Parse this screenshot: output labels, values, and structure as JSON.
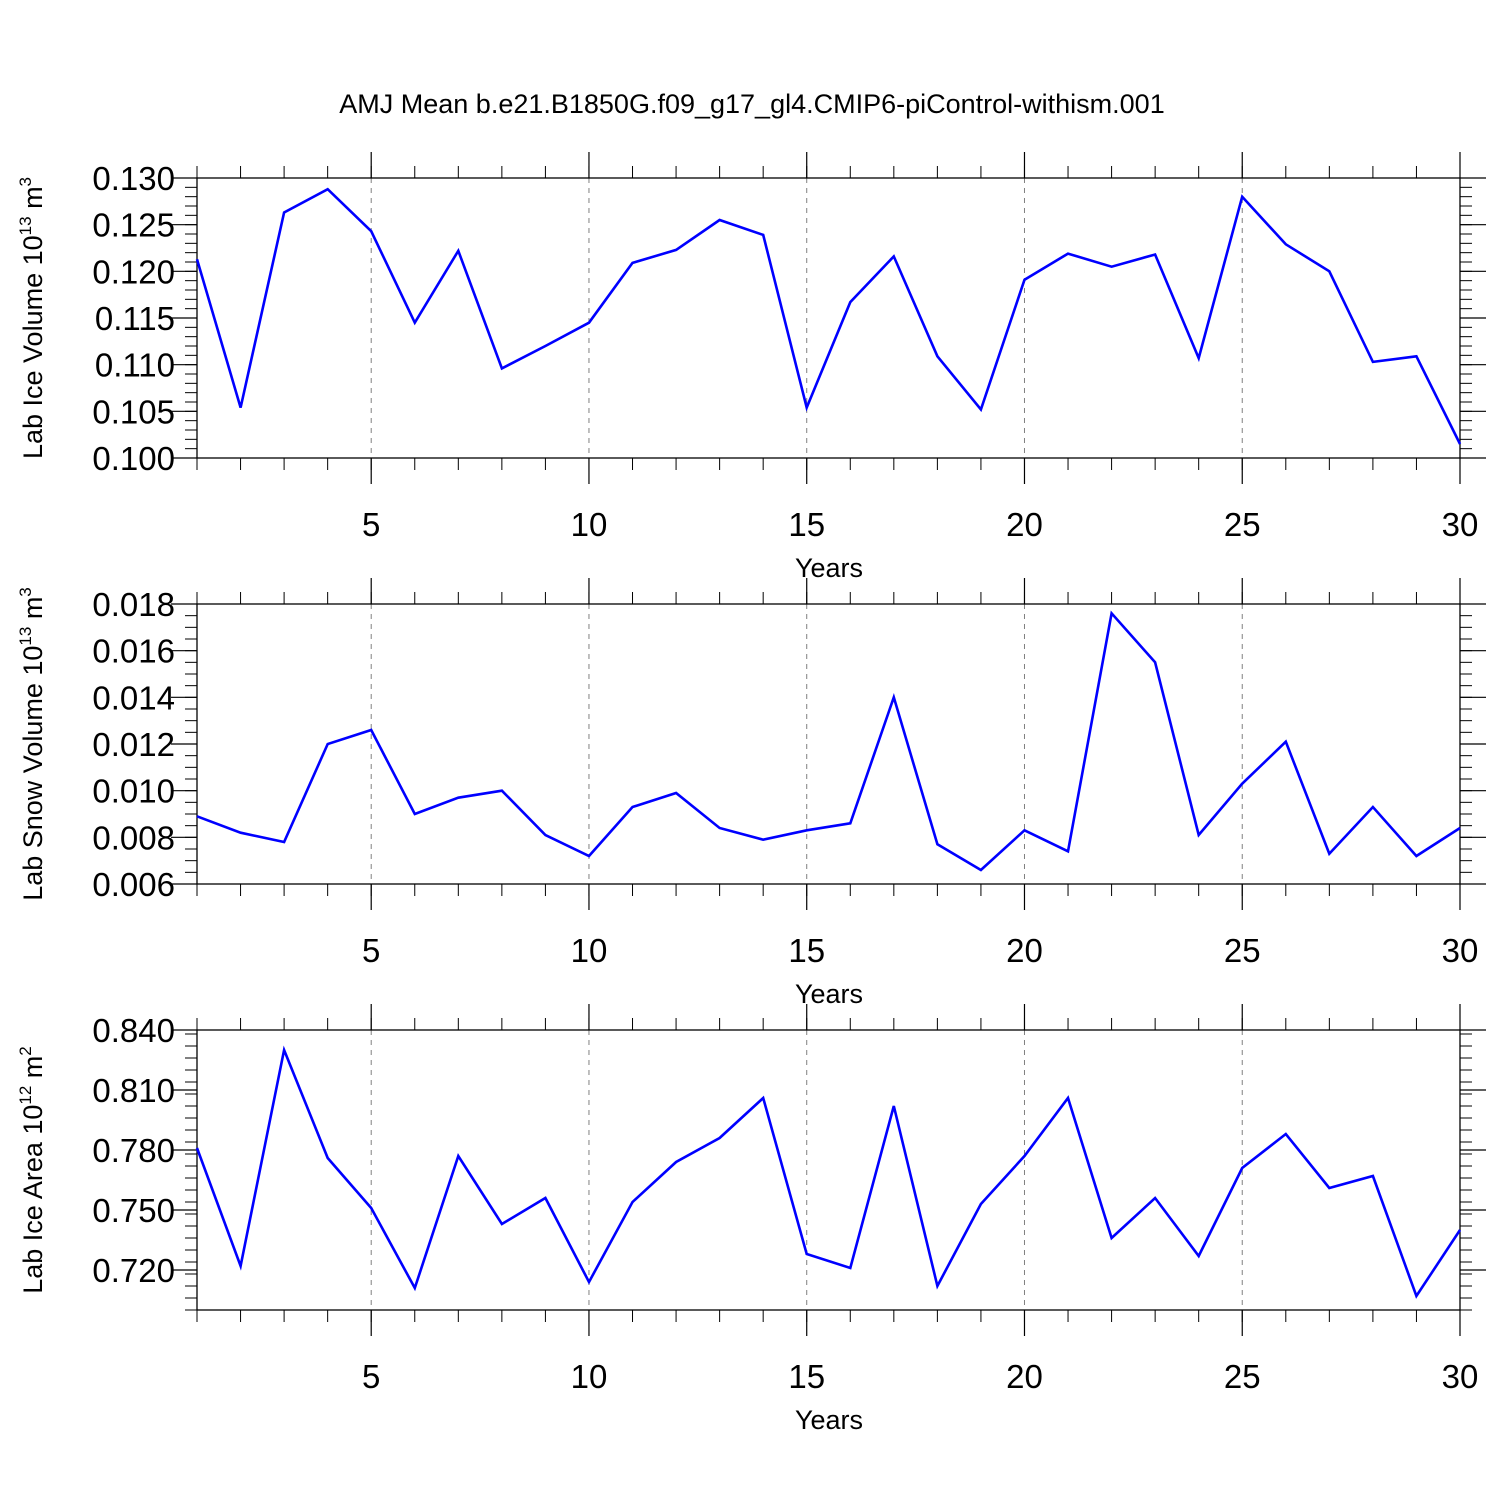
{
  "title": "AMJ Mean b.e21.B1850G.f09_g17_gl4.CMIP6-piControl-withism.001",
  "line_color": "#0000ff",
  "grid_color": "#808080",
  "chart_data": [
    {
      "type": "line",
      "ylabel": {
        "base": "Lab Ice Volume 10",
        "exp": "13",
        "unit": " m",
        "unit_exp": "3"
      },
      "xlabel": "Years",
      "x": [
        1,
        2,
        3,
        4,
        5,
        6,
        7,
        8,
        9,
        10,
        11,
        12,
        13,
        14,
        15,
        16,
        17,
        18,
        19,
        20,
        21,
        22,
        23,
        24,
        25,
        26,
        27,
        28,
        29,
        30
      ],
      "values": [
        0.1213,
        0.1054,
        0.1263,
        0.1288,
        0.1243,
        0.1145,
        0.1222,
        0.1096,
        0.112,
        0.1145,
        0.1209,
        0.1223,
        0.1255,
        0.1239,
        0.1054,
        0.1167,
        0.1216,
        0.1109,
        0.1052,
        0.1191,
        0.1219,
        0.1205,
        0.1218,
        0.1107,
        0.128,
        0.1229,
        0.12,
        0.1103,
        0.1109,
        0.1015
      ],
      "xlim": [
        1,
        30
      ],
      "ylim": [
        0.1,
        0.13
      ],
      "yticks": [
        0.1,
        0.105,
        0.11,
        0.115,
        0.12,
        0.125,
        0.13
      ],
      "ytick_labels": [
        "0.100",
        "0.105",
        "0.110",
        "0.115",
        "0.120",
        "0.125",
        "0.130"
      ],
      "yminor_step": 0.001,
      "xticks": [
        5,
        10,
        15,
        20,
        25,
        30
      ],
      "xtick_labels": [
        "5",
        "10",
        "15",
        "20",
        "25",
        "30"
      ],
      "grid": "vertical-dashed"
    },
    {
      "type": "line",
      "ylabel": {
        "base": "Lab Snow Volume 10",
        "exp": "13",
        "unit": " m",
        "unit_exp": "3"
      },
      "xlabel": "Years",
      "x": [
        1,
        2,
        3,
        4,
        5,
        6,
        7,
        8,
        9,
        10,
        11,
        12,
        13,
        14,
        15,
        16,
        17,
        18,
        19,
        20,
        21,
        22,
        23,
        24,
        25,
        26,
        27,
        28,
        29,
        30
      ],
      "values": [
        0.0089,
        0.0082,
        0.0078,
        0.012,
        0.0126,
        0.009,
        0.0097,
        0.01,
        0.0081,
        0.0072,
        0.0093,
        0.0099,
        0.0084,
        0.0079,
        0.0083,
        0.0086,
        0.014,
        0.0077,
        0.0066,
        0.0083,
        0.0074,
        0.0176,
        0.0155,
        0.0081,
        0.0103,
        0.0121,
        0.0073,
        0.0093,
        0.0072,
        0.0084
      ],
      "xlim": [
        1,
        30
      ],
      "ylim": [
        0.006,
        0.018
      ],
      "yticks": [
        0.006,
        0.008,
        0.01,
        0.012,
        0.014,
        0.016,
        0.018
      ],
      "ytick_labels": [
        "0.006",
        "0.008",
        "0.010",
        "0.012",
        "0.014",
        "0.016",
        "0.018"
      ],
      "yminor_step": 0.0005,
      "xticks": [
        5,
        10,
        15,
        20,
        25,
        30
      ],
      "xtick_labels": [
        "5",
        "10",
        "15",
        "20",
        "25",
        "30"
      ],
      "grid": "vertical-dashed"
    },
    {
      "type": "line",
      "ylabel": {
        "base": "Lab Ice Area 10",
        "exp": "12",
        "unit": " m",
        "unit_exp": "2"
      },
      "xlabel": "Years",
      "x": [
        1,
        2,
        3,
        4,
        5,
        6,
        7,
        8,
        9,
        10,
        11,
        12,
        13,
        14,
        15,
        16,
        17,
        18,
        19,
        20,
        21,
        22,
        23,
        24,
        25,
        26,
        27,
        28,
        29,
        30
      ],
      "values": [
        0.781,
        0.722,
        0.83,
        0.776,
        0.751,
        0.711,
        0.777,
        0.743,
        0.756,
        0.714,
        0.754,
        0.774,
        0.786,
        0.806,
        0.728,
        0.721,
        0.802,
        0.712,
        0.753,
        0.777,
        0.806,
        0.736,
        0.756,
        0.727,
        0.771,
        0.788,
        0.761,
        0.767,
        0.707,
        0.74
      ],
      "xlim": [
        1,
        30
      ],
      "ylim": [
        0.7,
        0.84
      ],
      "yticks": [
        0.72,
        0.75,
        0.78,
        0.81,
        0.84
      ],
      "ytick_labels": [
        "0.720",
        "0.750",
        "0.780",
        "0.810",
        "0.840"
      ],
      "yminor_step": 0.006,
      "xticks": [
        5,
        10,
        15,
        20,
        25,
        30
      ],
      "xtick_labels": [
        "5",
        "10",
        "15",
        "20",
        "25",
        "30"
      ],
      "grid": "vertical-dashed"
    }
  ]
}
